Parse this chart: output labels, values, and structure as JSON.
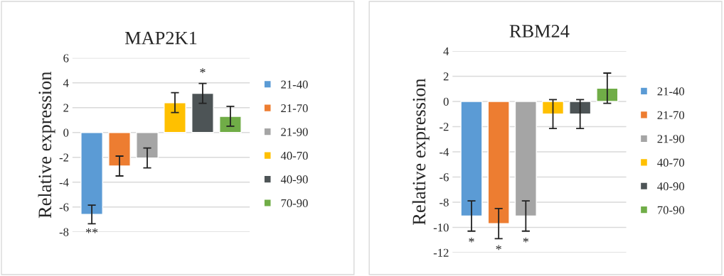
{
  "chart_data": [
    {
      "type": "bar",
      "title": "MAP2K1",
      "ylabel": "Relative expression",
      "categories": [
        null
      ],
      "ylim": [
        -8,
        6
      ],
      "yticks": [
        -8,
        -6,
        -4,
        -2,
        0,
        2,
        4,
        6
      ],
      "grid": "y",
      "legend": "right",
      "series": [
        {
          "name": "21-40",
          "color": "#5b9bd5",
          "values": [
            -6.6
          ],
          "errors": [
            0.75
          ]
        },
        {
          "name": "21-70",
          "color": "#ed7d31",
          "values": [
            -2.7
          ],
          "errors": [
            0.8
          ]
        },
        {
          "name": "21-90",
          "color": "#a5a5a5",
          "values": [
            -2.05
          ],
          "errors": [
            0.8
          ]
        },
        {
          "name": "40-70",
          "color": "#ffc000",
          "values": [
            2.4
          ],
          "errors": [
            0.8
          ]
        },
        {
          "name": "40-90",
          "color": "#4d5456",
          "values": [
            3.15
          ],
          "errors": [
            0.8
          ]
        },
        {
          "name": "70-90",
          "color": "#70ad47",
          "values": [
            1.3
          ],
          "errors": [
            0.8
          ]
        }
      ],
      "annotations": [
        "**",
        "*"
      ]
    },
    {
      "type": "bar",
      "title": "RBM24",
      "ylabel": "Relative expression",
      "categories": [
        null
      ],
      "ylim": [
        -12,
        4
      ],
      "yticks": [
        -12,
        -10,
        -8,
        -6,
        -4,
        -2,
        0,
        2,
        4
      ],
      "grid": "y",
      "legend": "right",
      "series": [
        {
          "name": "21-40",
          "color": "#5b9bd5",
          "values": [
            -9.1
          ],
          "errors": [
            1.2
          ]
        },
        {
          "name": "21-70",
          "color": "#ed7d31",
          "values": [
            -9.7
          ],
          "errors": [
            1.2
          ]
        },
        {
          "name": "21-90",
          "color": "#a5a5a5",
          "values": [
            -9.1
          ],
          "errors": [
            1.2
          ]
        },
        {
          "name": "40-70",
          "color": "#ffc000",
          "values": [
            -1.0
          ],
          "errors": [
            1.15
          ]
        },
        {
          "name": "40-90",
          "color": "#4d5456",
          "values": [
            -1.0
          ],
          "errors": [
            1.15
          ]
        },
        {
          "name": "70-90",
          "color": "#70ad47",
          "values": [
            1.05
          ],
          "errors": [
            1.2
          ]
        }
      ],
      "annotations": [
        "*",
        "*",
        "*"
      ]
    }
  ]
}
